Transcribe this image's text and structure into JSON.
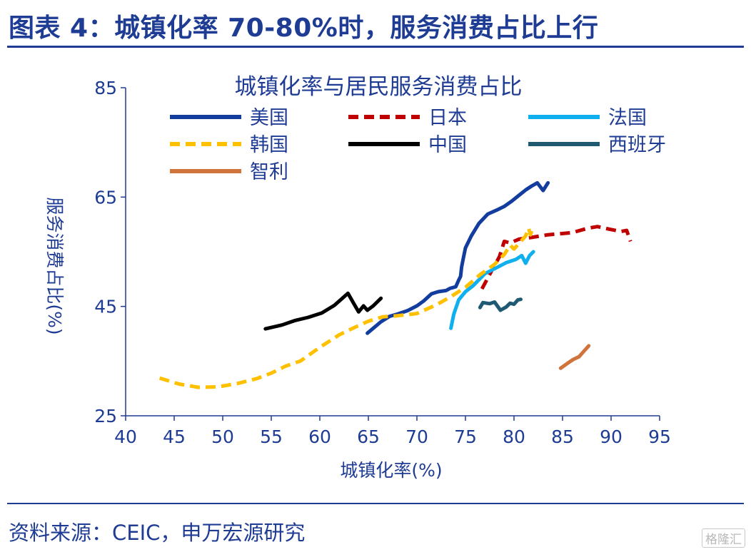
{
  "header": {
    "title": "图表 4：城镇化率 70-80%时，服务消费占比上行"
  },
  "footer": {
    "source": "资料来源：CEIC，申万宏源研究",
    "watermark": "格隆汇"
  },
  "chart_data": {
    "type": "line",
    "title": "城镇化率与居民服务消费占比",
    "xlabel": "城镇化率(%)",
    "ylabel": "服务消费占比(%)",
    "xlim": [
      40,
      95
    ],
    "ylim": [
      25,
      85
    ],
    "xticks": [
      "40",
      "45",
      "50",
      "55",
      "60",
      "65",
      "70",
      "75",
      "80",
      "85",
      "90",
      "95"
    ],
    "yticks": [
      "25",
      "45",
      "65",
      "85"
    ],
    "grid": false,
    "legend_position": "top",
    "series": [
      {
        "name": "美国",
        "color": "#123d9e",
        "dash": "solid",
        "points": [
          [
            64.9,
            40.1
          ],
          [
            65.5,
            41.0
          ],
          [
            66.3,
            42.2
          ],
          [
            67.2,
            43.2
          ],
          [
            68.0,
            43.6
          ],
          [
            69.0,
            44.2
          ],
          [
            70.0,
            45.1
          ],
          [
            70.7,
            46.0
          ],
          [
            71.5,
            47.3
          ],
          [
            72.2,
            47.7
          ],
          [
            73.0,
            47.9
          ],
          [
            73.4,
            48.3
          ],
          [
            74.0,
            48.6
          ],
          [
            74.3,
            49.8
          ],
          [
            74.5,
            50.5
          ],
          [
            74.6,
            52.2
          ],
          [
            74.8,
            54.0
          ],
          [
            75.0,
            55.7
          ],
          [
            75.6,
            57.9
          ],
          [
            76.4,
            60.2
          ],
          [
            77.3,
            61.9
          ],
          [
            78.2,
            62.6
          ],
          [
            79.0,
            63.3
          ],
          [
            79.8,
            64.3
          ],
          [
            80.5,
            65.3
          ],
          [
            81.2,
            66.3
          ],
          [
            81.8,
            67.0
          ],
          [
            82.4,
            67.6
          ],
          [
            83.0,
            66.2
          ],
          [
            83.5,
            67.6
          ]
        ]
      },
      {
        "name": "日本",
        "color": "#c00000",
        "dash": "dashed",
        "points": [
          [
            76.7,
            48.2
          ],
          [
            77.6,
            51.2
          ],
          [
            78.5,
            54.1
          ],
          [
            79.0,
            56.9
          ],
          [
            79.6,
            56.6
          ],
          [
            80.5,
            57.3
          ],
          [
            81.7,
            57.6
          ],
          [
            83.5,
            58.1
          ],
          [
            86.0,
            58.5
          ],
          [
            87.6,
            59.3
          ],
          [
            88.6,
            59.6
          ],
          [
            89.9,
            59.1
          ],
          [
            91.0,
            58.7
          ],
          [
            91.6,
            58.9
          ],
          [
            92.0,
            56.9
          ]
        ]
      },
      {
        "name": "法国",
        "color": "#10b0ee",
        "dash": "solid",
        "points": [
          [
            73.5,
            41.0
          ],
          [
            73.8,
            43.6
          ],
          [
            74.3,
            46.2
          ],
          [
            75.0,
            47.7
          ],
          [
            75.8,
            48.8
          ],
          [
            77.0,
            51.0
          ],
          [
            78.0,
            51.9
          ],
          [
            79.2,
            53.0
          ],
          [
            80.2,
            53.6
          ],
          [
            80.8,
            54.3
          ],
          [
            81.2,
            52.9
          ],
          [
            81.6,
            54.3
          ],
          [
            82.0,
            55.0
          ]
        ]
      },
      {
        "name": "韩国",
        "color": "#ffc000",
        "dash": "dashed",
        "points": [
          [
            43.5,
            31.9
          ],
          [
            45.5,
            30.8
          ],
          [
            47.5,
            30.2
          ],
          [
            49.5,
            30.3
          ],
          [
            51.5,
            30.9
          ],
          [
            53.5,
            31.8
          ],
          [
            55.0,
            32.8
          ],
          [
            56.5,
            34.1
          ],
          [
            58.0,
            35.0
          ],
          [
            59.5,
            36.9
          ],
          [
            60.5,
            38.1
          ],
          [
            62.0,
            39.8
          ],
          [
            63.5,
            41.1
          ],
          [
            65.0,
            42.3
          ],
          [
            66.5,
            43.1
          ],
          [
            68.0,
            43.3
          ],
          [
            70.0,
            43.7
          ],
          [
            72.0,
            45.3
          ],
          [
            73.5,
            46.8
          ],
          [
            75.0,
            48.5
          ],
          [
            76.5,
            50.8
          ],
          [
            78.0,
            52.7
          ],
          [
            79.0,
            54.5
          ],
          [
            79.6,
            56.2
          ],
          [
            80.0,
            55.5
          ],
          [
            80.6,
            56.7
          ],
          [
            81.2,
            57.9
          ],
          [
            81.5,
            59.3
          ],
          [
            81.7,
            58.1
          ],
          [
            81.9,
            59.2
          ]
        ]
      },
      {
        "name": "中国",
        "color": "#000000",
        "dash": "solid",
        "points": [
          [
            54.4,
            40.9
          ],
          [
            56.1,
            41.6
          ],
          [
            57.4,
            42.4
          ],
          [
            58.8,
            43.0
          ],
          [
            60.2,
            43.8
          ],
          [
            61.5,
            45.2
          ],
          [
            62.2,
            46.3
          ],
          [
            62.9,
            47.4
          ],
          [
            63.6,
            45.2
          ],
          [
            64.0,
            44.0
          ],
          [
            64.5,
            45.1
          ],
          [
            64.9,
            44.3
          ],
          [
            65.5,
            45.1
          ],
          [
            66.3,
            46.5
          ]
        ]
      },
      {
        "name": "西班牙",
        "color": "#1f5a72",
        "dash": "solid",
        "points": [
          [
            76.5,
            44.8
          ],
          [
            76.8,
            45.7
          ],
          [
            77.5,
            45.5
          ],
          [
            78.0,
            45.8
          ],
          [
            78.6,
            44.3
          ],
          [
            79.2,
            44.9
          ],
          [
            79.6,
            45.6
          ],
          [
            80.0,
            45.4
          ],
          [
            80.4,
            46.2
          ],
          [
            80.7,
            46.3
          ]
        ]
      },
      {
        "name": "智利",
        "color": "#d0743c",
        "dash": "solid",
        "points": [
          [
            84.8,
            33.7
          ],
          [
            85.6,
            34.7
          ],
          [
            86.1,
            35.3
          ],
          [
            86.7,
            35.8
          ],
          [
            87.2,
            36.8
          ],
          [
            87.7,
            37.8
          ]
        ]
      }
    ]
  }
}
